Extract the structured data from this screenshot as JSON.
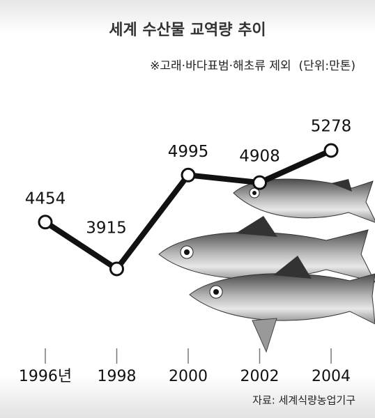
{
  "chart_data": {
    "type": "line",
    "title": "세계 수산물 교역량 추이",
    "subtitle": "※고래·바다표범·해초류 제외  (단위:만톤)",
    "source": "자료: 세계식량농업기구",
    "categories": [
      "1996년",
      "1998",
      "2000",
      "2002",
      "2004"
    ],
    "values": [
      4454,
      3915,
      4995,
      4908,
      5278
    ],
    "color": "#111111"
  }
}
